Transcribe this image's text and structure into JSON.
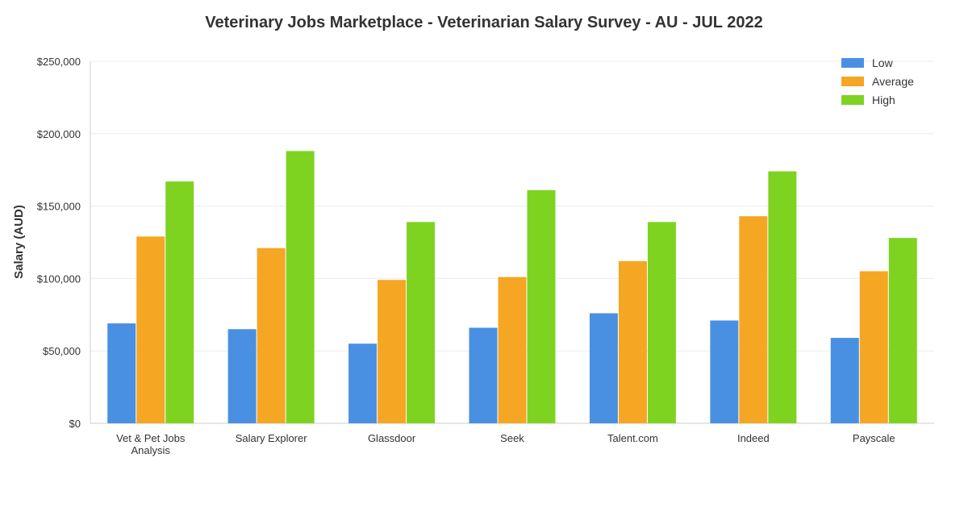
{
  "chart_data": {
    "type": "bar",
    "title": "Veterinary Jobs Marketplace - Veterinarian Salary Survey - AU - JUL 2022",
    "xlabel": "",
    "ylabel": "Salary (AUD)",
    "ylim": [
      0,
      250000
    ],
    "yticks": [
      0,
      50000,
      100000,
      150000,
      200000,
      250000
    ],
    "ytick_labels": [
      "$0",
      "$50,000",
      "$100,000",
      "$150,000",
      "$200,000",
      "$250,000"
    ],
    "categories": [
      [
        "Vet & Pet Jobs",
        "Analysis"
      ],
      [
        "Salary Explorer"
      ],
      [
        "Glassdoor"
      ],
      [
        "Seek"
      ],
      [
        "Talent.com"
      ],
      [
        "Indeed"
      ],
      [
        "Payscale"
      ]
    ],
    "series": [
      {
        "name": "Low",
        "color": "#4a90e2",
        "values": [
          69000,
          65000,
          55000,
          66000,
          76000,
          71000,
          59000
        ]
      },
      {
        "name": "Average",
        "color": "#f5a623",
        "values": [
          129000,
          121000,
          99000,
          101000,
          112000,
          143000,
          105000
        ]
      },
      {
        "name": "High",
        "color": "#7ed321",
        "values": [
          167000,
          188000,
          139000,
          161000,
          139000,
          174000,
          128000
        ]
      }
    ],
    "grid": true,
    "legend_position": "top-right"
  }
}
